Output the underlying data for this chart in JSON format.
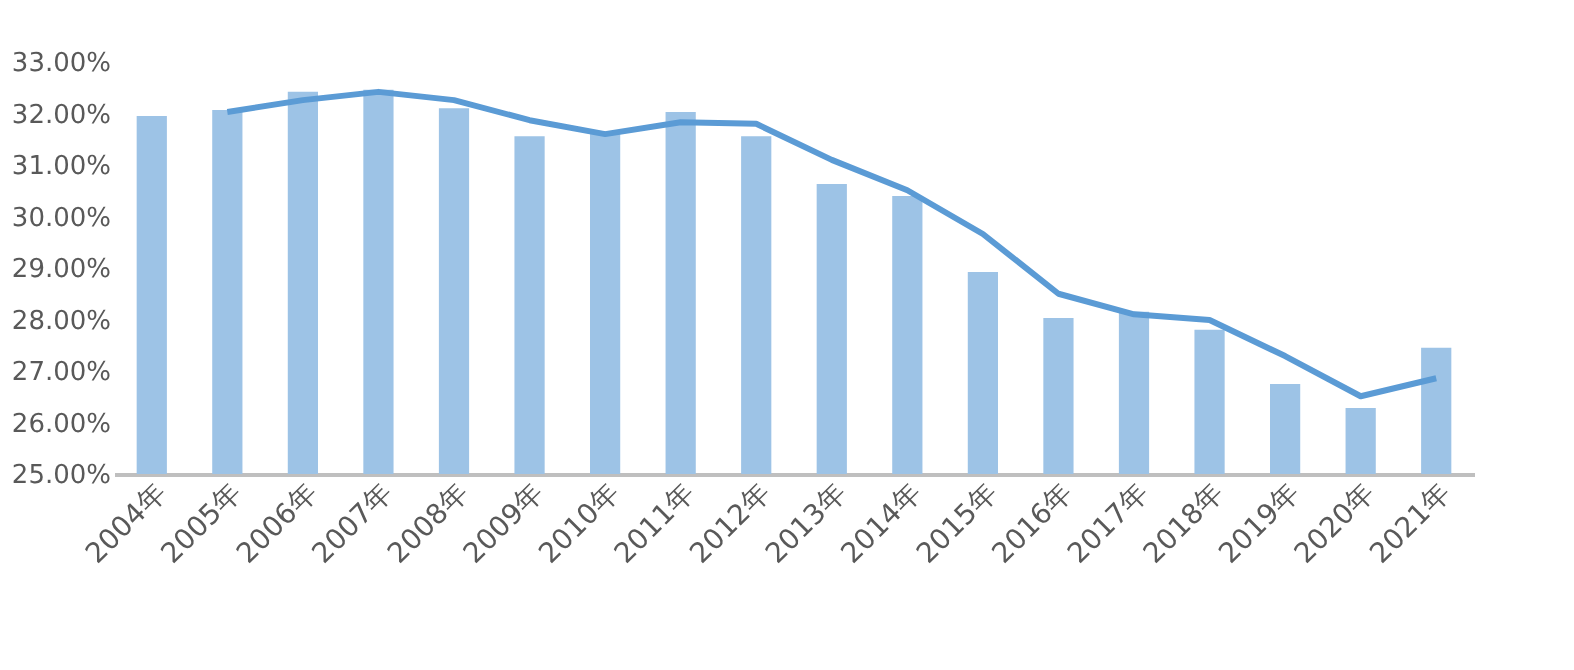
{
  "chart_data": {
    "type": "bar",
    "categories": [
      "2004年",
      "2005年",
      "2006年",
      "2007年",
      "2008年",
      "2009年",
      "2010年",
      "2011年",
      "2012年",
      "2013年",
      "2014年",
      "2015年",
      "2016年",
      "2017年",
      "2018年",
      "2019年",
      "2020年",
      "2021年"
    ],
    "series": [
      {
        "color": "#9dc3e6",
        "values": [
          31.95,
          32.07,
          32.42,
          32.46,
          32.1,
          31.56,
          31.6,
          32.03,
          31.56,
          30.63,
          30.4,
          28.92,
          28.03,
          28.15,
          27.8,
          26.75,
          26.28,
          27.45
        ]
      },
      {
        "type": "line",
        "color": "#5b9bd5",
        "values": [
          null,
          32.03,
          32.26,
          32.42,
          32.26,
          31.87,
          31.6,
          31.83,
          31.8,
          31.1,
          30.51,
          29.66,
          28.5,
          28.1,
          27.99,
          27.29,
          26.51,
          26.86
        ]
      }
    ],
    "ylim": [
      25,
      33
    ],
    "yticks": [
      {
        "value": 25,
        "label": "25.00%"
      },
      {
        "value": 26,
        "label": "26.00%"
      },
      {
        "value": 27,
        "label": "27.00%"
      },
      {
        "value": 28,
        "label": "28.00%"
      },
      {
        "value": 29,
        "label": "29.00%"
      },
      {
        "value": 30,
        "label": "30.00%"
      },
      {
        "value": 31,
        "label": "31.00%"
      },
      {
        "value": 32,
        "label": "32.00%"
      },
      {
        "value": 33,
        "label": "33.00%"
      }
    ],
    "grid": false,
    "marker": "none",
    "line_style": "solid"
  }
}
